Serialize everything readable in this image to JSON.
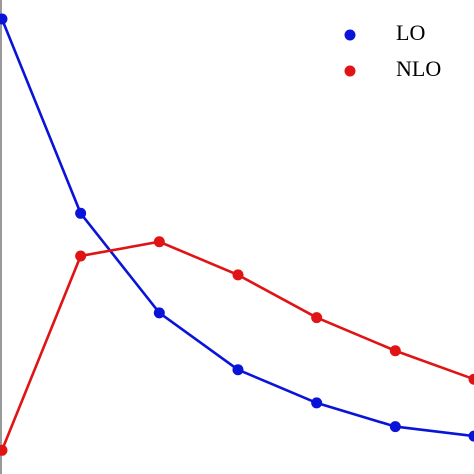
{
  "chart_data": {
    "type": "line",
    "x": [
      0,
      1,
      2,
      3,
      4,
      5,
      6
    ],
    "series": [
      {
        "name": "LO",
        "color": "#0a14d8",
        "values": [
          0.96,
          0.55,
          0.34,
          0.22,
          0.15,
          0.1,
          0.08
        ]
      },
      {
        "name": "NLO",
        "color": "#e01414",
        "values": [
          0.05,
          0.46,
          0.49,
          0.42,
          0.33,
          0.26,
          0.2
        ]
      }
    ],
    "xlim": [
      -0.025,
      6.0
    ],
    "ylim": [
      0,
      1
    ],
    "legend": "upper right"
  }
}
